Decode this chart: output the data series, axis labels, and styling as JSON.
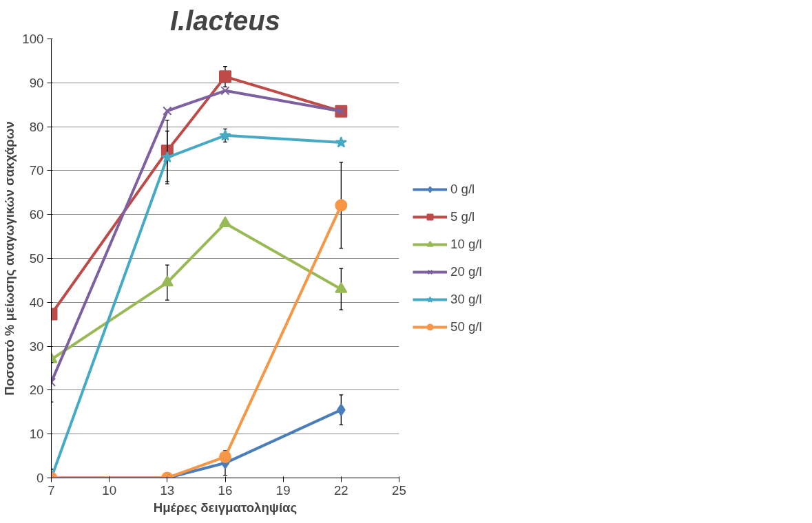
{
  "chart_data": {
    "type": "line",
    "title": "I.lacteus",
    "xlabel": "Ημέρες δειγματοληψίας",
    "ylabel": "Ποσοστό % μείωσης αναγωγικών σακχάρων",
    "x": [
      7,
      13,
      16,
      22
    ],
    "series": [
      {
        "name": "0 g/l",
        "color": "#4a7ebb",
        "marker": "diamond",
        "values": [
          0,
          0,
          3.4,
          15.5
        ],
        "errors": [
          2,
          null,
          2.8,
          3.4
        ]
      },
      {
        "name": "5 g/l",
        "color": "#be4b48",
        "marker": "square",
        "values": [
          37.3,
          74.5,
          91.4,
          83.5
        ],
        "errors": [
          null,
          7,
          2.3,
          null
        ]
      },
      {
        "name": "10 g/l",
        "color": "#98b954",
        "marker": "triangle",
        "values": [
          27,
          44.5,
          58,
          43
        ],
        "errors": [
          null,
          4,
          null,
          4.7
        ]
      },
      {
        "name": "20 g/l",
        "color": "#7d60a0",
        "marker": "cross",
        "values": [
          21.8,
          83.6,
          88.2,
          83.5
        ],
        "errors": [
          4.5,
          null,
          null,
          null
        ]
      },
      {
        "name": "30 g/l",
        "color": "#46aac5",
        "marker": "star",
        "values": [
          0,
          73,
          78,
          76.4
        ],
        "errors": [
          null,
          6,
          1.5,
          null
        ]
      },
      {
        "name": "50 g/l",
        "color": "#f79646",
        "marker": "circle",
        "values": [
          0,
          0,
          4.8,
          62.1
        ],
        "errors": [
          null,
          null,
          null,
          9.8
        ]
      }
    ],
    "xlim": [
      7,
      25
    ],
    "xticks": [
      7,
      10,
      13,
      16,
      19,
      22,
      25
    ],
    "ylim": [
      0,
      100
    ],
    "yticks": [
      0,
      10,
      20,
      30,
      40,
      50,
      60,
      70,
      80,
      90,
      100
    ],
    "grid": "y",
    "legend": "right"
  }
}
